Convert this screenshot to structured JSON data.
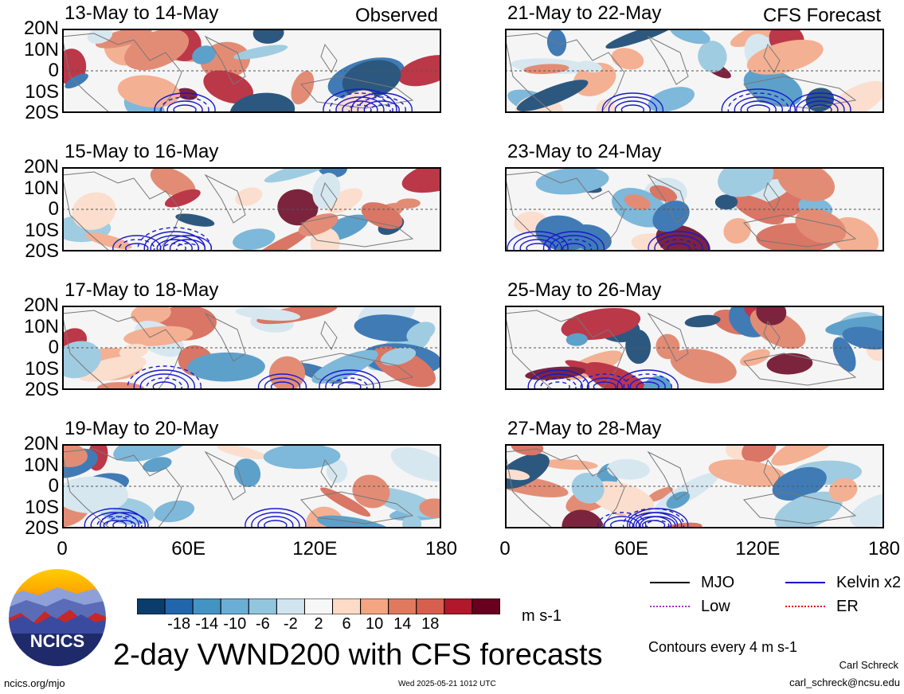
{
  "chart_data": {
    "type": "heatmap",
    "title": "2-day VWND200 with CFS forecasts",
    "variable": "VWND200",
    "units": "m s-1",
    "lon_range": [
      0,
      180
    ],
    "lat_range": [
      -20,
      20
    ],
    "x_ticks": [
      "0",
      "60E",
      "120E",
      "180"
    ],
    "y_ticks": [
      "20N",
      "10N",
      "0",
      "10S",
      "20S"
    ],
    "colorbar": {
      "labels": [
        "-18",
        "-14",
        "-10",
        "-6",
        "-2",
        "2",
        "6",
        "10",
        "14",
        "18"
      ],
      "colors": [
        "#0a3d6b",
        "#2166ac",
        "#4393c3",
        "#6aaed6",
        "#92c5de",
        "#d1e5f0",
        "#f7f7f7",
        "#fddbc7",
        "#f4a582",
        "#e07a5f",
        "#d6604d",
        "#b2182b",
        "#67001f"
      ]
    },
    "panels": [
      {
        "label": "13-May to 14-May",
        "tag": "Observed",
        "col": 0,
        "row": 0
      },
      {
        "label": "15-May to 16-May",
        "tag": "",
        "col": 0,
        "row": 1
      },
      {
        "label": "17-May to 18-May",
        "tag": "",
        "col": 0,
        "row": 2
      },
      {
        "label": "19-May to 20-May",
        "tag": "",
        "col": 0,
        "row": 3
      },
      {
        "label": "21-May to 22-May",
        "tag": "CFS Forecast",
        "col": 1,
        "row": 0
      },
      {
        "label": "23-May to 24-May",
        "tag": "",
        "col": 1,
        "row": 1
      },
      {
        "label": "25-May to 26-May",
        "tag": "",
        "col": 1,
        "row": 2
      },
      {
        "label": "27-May to 28-May",
        "tag": "",
        "col": 1,
        "row": 3
      }
    ],
    "legend": [
      {
        "name": "MJO",
        "color": "#000000"
      },
      {
        "name": "Kelvin x2",
        "color": "#0000cc"
      },
      {
        "name": "Low",
        "color": "#9933cc"
      },
      {
        "name": "ER",
        "color": "#dd0000"
      }
    ],
    "contour_note": "Contours every 4 m s-1"
  },
  "footer": {
    "logo_text": "NCICS",
    "url": "ncics.org/mjo",
    "timestamp": "Wed 2025-05-21 1012 UTC",
    "author": "Carl Schreck",
    "email": "carl_schreck@ncsu.edu"
  }
}
